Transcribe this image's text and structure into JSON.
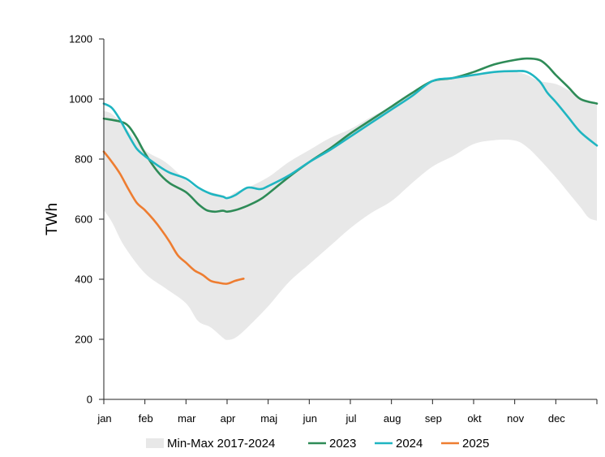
{
  "chart_data": {
    "type": "area+line",
    "title": "",
    "xlabel": "",
    "ylabel": "TWh",
    "ylim": [
      0,
      1200
    ],
    "xlim": [
      0,
      12
    ],
    "y_ticks": [
      0,
      200,
      400,
      600,
      800,
      1000,
      1200
    ],
    "x_tick_labels": [
      "jan",
      "feb",
      "mar",
      "apr",
      "maj",
      "jun",
      "jul",
      "aug",
      "sep",
      "okt",
      "nov",
      "dec"
    ],
    "grid": false,
    "legend_position": "bottom",
    "colors": {
      "band": "#e8e8e8",
      "2023": "#2e8b57",
      "2024": "#1fb5c1",
      "2025": "#ee7d31",
      "axis": "#222222"
    },
    "band": {
      "name": "Min-Max 2017-2024",
      "x": [
        0,
        0.2,
        0.5,
        1.0,
        1.5,
        2.0,
        2.3,
        2.6,
        2.9,
        3.0,
        3.2,
        3.5,
        4.0,
        4.5,
        5.0,
        5.5,
        6.0,
        6.5,
        7.0,
        7.5,
        8.0,
        8.5,
        9.0,
        9.5,
        10.0,
        10.3,
        10.6,
        11.0,
        11.3,
        11.6,
        11.8,
        12.0
      ],
      "lower": [
        630,
        590,
        510,
        420,
        370,
        320,
        260,
        240,
        205,
        198,
        205,
        240,
        310,
        390,
        450,
        510,
        570,
        620,
        660,
        720,
        775,
        810,
        850,
        863,
        862,
        840,
        800,
        740,
        690,
        640,
        605,
        595
      ],
      "upper": [
        960,
        950,
        910,
        830,
        790,
        730,
        700,
        690,
        680,
        670,
        690,
        705,
        740,
        790,
        830,
        870,
        900,
        940,
        975,
        1020,
        1060,
        1075,
        1085,
        1090,
        1090,
        1080,
        1060,
        1050,
        1030,
        1005,
        995,
        985
      ]
    },
    "series": [
      {
        "name": "2023",
        "x": [
          0,
          0.4,
          0.6,
          0.8,
          1.0,
          1.3,
          1.6,
          2.0,
          2.3,
          2.5,
          2.7,
          2.9,
          3.0,
          3.2,
          3.5,
          3.8,
          4.0,
          4.5,
          5.0,
          5.5,
          6.0,
          6.5,
          7.0,
          7.5,
          8.0,
          8.5,
          9.0,
          9.5,
          10.0,
          10.3,
          10.6,
          10.8,
          11.0,
          11.3,
          11.6,
          12.0
        ],
        "values": [
          935,
          925,
          910,
          870,
          820,
          760,
          720,
          690,
          650,
          630,
          625,
          628,
          625,
          630,
          645,
          665,
          685,
          740,
          790,
          835,
          885,
          930,
          975,
          1020,
          1060,
          1070,
          1090,
          1115,
          1130,
          1135,
          1130,
          1110,
          1080,
          1040,
          1000,
          985
        ]
      },
      {
        "name": "2024",
        "x": [
          0,
          0.2,
          0.4,
          0.6,
          0.8,
          1.0,
          1.3,
          1.6,
          2.0,
          2.3,
          2.6,
          2.9,
          3.0,
          3.2,
          3.5,
          3.8,
          4.0,
          4.5,
          5.0,
          5.5,
          6.0,
          6.5,
          7.0,
          7.5,
          8.0,
          8.5,
          9.0,
          9.5,
          10.0,
          10.3,
          10.6,
          10.8,
          11.0,
          11.3,
          11.6,
          12.0
        ],
        "values": [
          985,
          970,
          930,
          880,
          835,
          810,
          780,
          755,
          735,
          705,
          685,
          675,
          670,
          680,
          705,
          700,
          710,
          745,
          790,
          830,
          875,
          920,
          965,
          1010,
          1060,
          1070,
          1080,
          1090,
          1093,
          1090,
          1060,
          1020,
          990,
          940,
          890,
          845
        ]
      },
      {
        "name": "2025",
        "x": [
          0,
          0.2,
          0.4,
          0.6,
          0.8,
          1.0,
          1.2,
          1.4,
          1.6,
          1.8,
          2.0,
          2.2,
          2.4,
          2.6,
          2.8,
          3.0,
          3.2,
          3.4
        ],
        "values": [
          825,
          790,
          750,
          700,
          655,
          630,
          600,
          565,
          525,
          480,
          455,
          430,
          415,
          395,
          388,
          385,
          395,
          402
        ]
      }
    ],
    "legend": [
      {
        "label": "Min-Max 2017-2024",
        "kind": "band",
        "key": "band"
      },
      {
        "label": "2023",
        "kind": "line",
        "key": "2023"
      },
      {
        "label": "2024",
        "kind": "line",
        "key": "2024"
      },
      {
        "label": "2025",
        "kind": "line",
        "key": "2025"
      }
    ]
  }
}
